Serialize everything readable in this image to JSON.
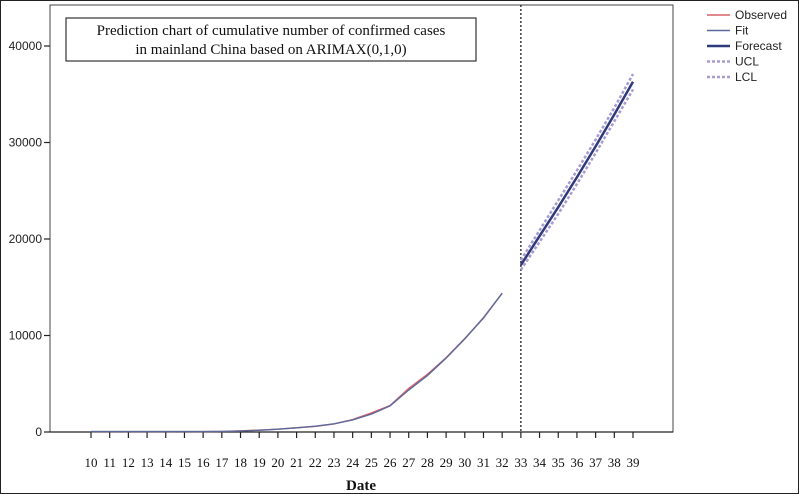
{
  "chart_data": {
    "type": "line",
    "title": [
      "Prediction chart of cumulative number of confirmed cases",
      "in mainland China based on ARIMAX(0,1,0)"
    ],
    "xlabel": "Date",
    "ylabel": "",
    "x": [
      10,
      11,
      12,
      13,
      14,
      15,
      16,
      17,
      18,
      19,
      20,
      21,
      22,
      23,
      24,
      25,
      26,
      27,
      28,
      29,
      30,
      31,
      32,
      33,
      34,
      35,
      36,
      37,
      38,
      39
    ],
    "xlim": [
      10,
      39
    ],
    "ylim": [
      0,
      40000
    ],
    "yticks": [
      0,
      10000,
      20000,
      30000,
      40000
    ],
    "forecast_start_marker": 33,
    "grid": false,
    "legend_position": "top-right",
    "series": [
      {
        "name": "Observed",
        "color": "#d9606a",
        "style": "solid",
        "x": [
          10,
          11,
          12,
          13,
          14,
          15,
          16,
          17,
          18,
          19,
          20,
          21,
          22,
          23,
          24,
          25,
          26,
          27,
          28,
          29,
          30,
          31,
          32
        ],
        "values": [
          41,
          41,
          41,
          41,
          41,
          41,
          45,
          62,
          121,
          198,
          291,
          440,
          571,
          830,
          1287,
          1975,
          2744,
          4515,
          5974,
          7711,
          9692,
          11791,
          14380
        ]
      },
      {
        "name": "Fit",
        "color": "#5a6a9a",
        "style": "solid",
        "x": [
          10,
          11,
          12,
          13,
          14,
          15,
          16,
          17,
          18,
          19,
          20,
          21,
          22,
          23,
          24,
          25,
          26,
          27,
          28,
          29,
          30,
          31,
          32
        ],
        "values": [
          41,
          41,
          41,
          41,
          41,
          41,
          43,
          55,
          100,
          180,
          290,
          430,
          600,
          850,
          1250,
          1850,
          2700,
          4350,
          5850,
          7650,
          9650,
          11850,
          14380
        ]
      },
      {
        "name": "Forecast",
        "color": "#2e3a7a",
        "style": "solid",
        "x": [
          33,
          34,
          35,
          36,
          37,
          38,
          39
        ],
        "values": [
          17300,
          20300,
          23300,
          26400,
          29600,
          32900,
          36300
        ]
      },
      {
        "name": "UCL",
        "color": "#a99bd0",
        "style": "dashed",
        "x": [
          33,
          34,
          35,
          36,
          37,
          38,
          39
        ],
        "values": [
          17800,
          20900,
          24000,
          27100,
          30300,
          33600,
          37100
        ]
      },
      {
        "name": "LCL",
        "color": "#a99bd0",
        "style": "dashed",
        "x": [
          33,
          34,
          35,
          36,
          37,
          38,
          39
        ],
        "values": [
          16800,
          19700,
          22600,
          25700,
          28900,
          32200,
          35500
        ]
      }
    ]
  }
}
